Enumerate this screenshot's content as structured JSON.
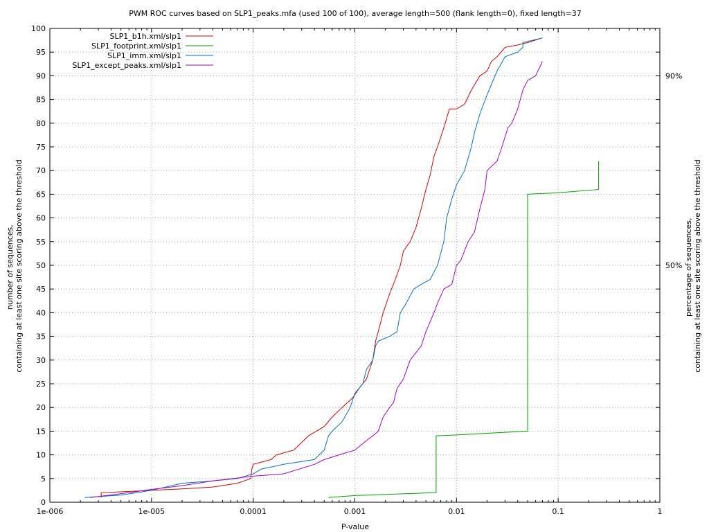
{
  "chart_data": {
    "type": "line",
    "title": "PWM ROC curves based on SLP1_peaks.mfa (used 100 of 100), average length=500 (flank length=0), fixed length=37",
    "xlabel": "P-value",
    "ylabel_lines": [
      "number of sequences,",
      "containing at least one site scoring above the threshold"
    ],
    "y2label_lines": [
      "percentage of sequences,",
      "containing at least one site scoring above the threshold"
    ],
    "xscale": "log",
    "xlim": [
      1e-06,
      1
    ],
    "ylim": [
      0,
      100
    ],
    "grid": true,
    "legend_position": "top-left",
    "xticks": [
      {
        "value": 1e-06,
        "label": "1e-006"
      },
      {
        "value": 1e-05,
        "label": "1e-005"
      },
      {
        "value": 0.0001,
        "label": "0.0001"
      },
      {
        "value": 0.001,
        "label": "0.001"
      },
      {
        "value": 0.01,
        "label": "0.01"
      },
      {
        "value": 0.1,
        "label": "0.1"
      },
      {
        "value": 1,
        "label": "1"
      }
    ],
    "yticks": [
      0,
      5,
      10,
      15,
      20,
      25,
      30,
      35,
      40,
      45,
      50,
      55,
      60,
      65,
      70,
      75,
      80,
      85,
      90,
      95,
      100
    ],
    "y2ticks": [
      {
        "value": 50,
        "label": "50%"
      },
      {
        "value": 90,
        "label": "90%"
      }
    ],
    "series": [
      {
        "name": "SLP1_b1h.xml/slp1",
        "color": "#d00000",
        "points": [
          [
            3.2e-06,
            1
          ],
          [
            3.2e-06,
            2
          ],
          [
            5e-06,
            2.2
          ],
          [
            1e-05,
            2.5
          ],
          [
            2e-05,
            2.8
          ],
          [
            4e-05,
            3.2
          ],
          [
            7e-05,
            4
          ],
          [
            9.5e-05,
            5
          ],
          [
            9.7e-05,
            7
          ],
          [
            0.0001,
            8
          ],
          [
            0.00015,
            9
          ],
          [
            0.00017,
            10
          ],
          [
            0.00025,
            11
          ],
          [
            0.00035,
            14
          ],
          [
            0.0005,
            16
          ],
          [
            0.0006,
            18
          ],
          [
            0.00075,
            20
          ],
          [
            0.00095,
            22
          ],
          [
            0.0011,
            24
          ],
          [
            0.0013,
            26
          ],
          [
            0.0015,
            30
          ],
          [
            0.0016,
            34
          ],
          [
            0.0017,
            36
          ],
          [
            0.0019,
            40
          ],
          [
            0.0022,
            44
          ],
          [
            0.0025,
            47
          ],
          [
            0.0028,
            50
          ],
          [
            0.003,
            53
          ],
          [
            0.0035,
            55
          ],
          [
            0.004,
            58
          ],
          [
            0.0045,
            62
          ],
          [
            0.005,
            66
          ],
          [
            0.0055,
            69
          ],
          [
            0.006,
            73
          ],
          [
            0.0065,
            75
          ],
          [
            0.0075,
            79
          ],
          [
            0.0085,
            83
          ],
          [
            0.01,
            83
          ],
          [
            0.012,
            84
          ],
          [
            0.014,
            87
          ],
          [
            0.017,
            90
          ],
          [
            0.02,
            91
          ],
          [
            0.022,
            93
          ],
          [
            0.025,
            94
          ],
          [
            0.03,
            96
          ],
          [
            0.04,
            96.5
          ],
          [
            0.05,
            97
          ],
          [
            0.07,
            98
          ]
        ]
      },
      {
        "name": "SLP1_footprint.xml/slp1",
        "color": "#00a000",
        "points": [
          [
            0.00055,
            1
          ],
          [
            0.001,
            1.4
          ],
          [
            0.006,
            2
          ],
          [
            0.0063,
            2
          ],
          [
            0.0063,
            14
          ],
          [
            0.01,
            14.2
          ],
          [
            0.05,
            15
          ],
          [
            0.05,
            65
          ],
          [
            0.1,
            65.3
          ],
          [
            0.25,
            66
          ],
          [
            0.25,
            72
          ]
        ]
      },
      {
        "name": "SLP1_imm.xml/slp1",
        "color": "#0070c0",
        "points": [
          [
            2.2e-06,
            1
          ],
          [
            5e-06,
            1.5
          ],
          [
            1e-05,
            2.5
          ],
          [
            2e-05,
            4
          ],
          [
            4e-05,
            4.5
          ],
          [
            7e-05,
            5
          ],
          [
            0.0001,
            6
          ],
          [
            0.00012,
            7
          ],
          [
            0.0002,
            8
          ],
          [
            0.0004,
            9
          ],
          [
            0.0005,
            11
          ],
          [
            0.00055,
            14
          ],
          [
            0.0006,
            15
          ],
          [
            0.00075,
            17
          ],
          [
            0.0009,
            20
          ],
          [
            0.001,
            23
          ],
          [
            0.0012,
            25
          ],
          [
            0.0013,
            28
          ],
          [
            0.0015,
            30
          ],
          [
            0.0016,
            33
          ],
          [
            0.0017,
            34
          ],
          [
            0.0022,
            35
          ],
          [
            0.0026,
            36
          ],
          [
            0.0028,
            40
          ],
          [
            0.0032,
            42
          ],
          [
            0.0038,
            45
          ],
          [
            0.0045,
            46
          ],
          [
            0.0055,
            47
          ],
          [
            0.0065,
            50
          ],
          [
            0.0075,
            55
          ],
          [
            0.008,
            60
          ],
          [
            0.009,
            64
          ],
          [
            0.01,
            67
          ],
          [
            0.012,
            70
          ],
          [
            0.014,
            75
          ],
          [
            0.015,
            78
          ],
          [
            0.017,
            82
          ],
          [
            0.02,
            86
          ],
          [
            0.025,
            91
          ],
          [
            0.03,
            94
          ],
          [
            0.04,
            95
          ],
          [
            0.045,
            96
          ],
          [
            0.045,
            97
          ],
          [
            0.07,
            98
          ]
        ]
      },
      {
        "name": "SLP1_except_peaks.xml/slp1",
        "color": "#a000c0",
        "points": [
          [
            2.5e-06,
            1
          ],
          [
            5e-06,
            1.8
          ],
          [
            1e-05,
            2.7
          ],
          [
            2e-05,
            3.5
          ],
          [
            4e-05,
            4.5
          ],
          [
            0.0001,
            5.5
          ],
          [
            0.0002,
            6
          ],
          [
            0.0004,
            8
          ],
          [
            0.0005,
            9
          ],
          [
            0.0007,
            10
          ],
          [
            0.001,
            11
          ],
          [
            0.0013,
            13
          ],
          [
            0.0015,
            14
          ],
          [
            0.0017,
            15
          ],
          [
            0.0019,
            18
          ],
          [
            0.0022,
            20
          ],
          [
            0.0024,
            21
          ],
          [
            0.0026,
            24
          ],
          [
            0.003,
            26
          ],
          [
            0.0035,
            30
          ],
          [
            0.0045,
            33
          ],
          [
            0.005,
            36
          ],
          [
            0.006,
            40
          ],
          [
            0.0065,
            42
          ],
          [
            0.0075,
            45
          ],
          [
            0.009,
            46
          ],
          [
            0.01,
            50
          ],
          [
            0.011,
            51
          ],
          [
            0.013,
            55
          ],
          [
            0.015,
            57
          ],
          [
            0.017,
            62
          ],
          [
            0.019,
            66
          ],
          [
            0.02,
            70
          ],
          [
            0.025,
            72
          ],
          [
            0.028,
            75
          ],
          [
            0.032,
            79
          ],
          [
            0.035,
            80
          ],
          [
            0.04,
            83
          ],
          [
            0.045,
            87
          ],
          [
            0.05,
            89
          ],
          [
            0.06,
            90
          ],
          [
            0.07,
            93
          ]
        ]
      }
    ]
  }
}
